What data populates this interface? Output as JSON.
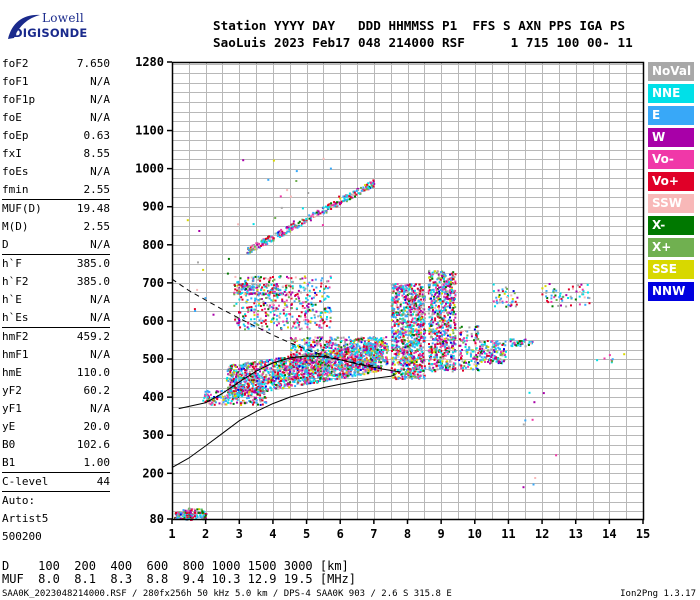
{
  "logo": {
    "top": "Lowell",
    "bottom": "DIGISONDE"
  },
  "header": {
    "line1": "Station YYYY DAY   DDD HHMMSS P1  FFS S AXN PPS IGA PS",
    "line2": "SaoLuis 2023 Feb17 048 214000 RSF      1 715 100 00- 11"
  },
  "params": [
    {
      "name": "foF2",
      "value": "7.650"
    },
    {
      "name": "foF1",
      "value": "N/A"
    },
    {
      "name": "foF1p",
      "value": "N/A"
    },
    {
      "name": "foE",
      "value": "N/A"
    },
    {
      "name": "foEp",
      "value": "0.63"
    },
    {
      "name": "fxI",
      "value": "8.55"
    },
    {
      "name": "foEs",
      "value": "N/A"
    },
    {
      "name": "fmin",
      "value": "2.55"
    },
    {
      "sep": true
    },
    {
      "name": "MUF(D)",
      "value": "19.48"
    },
    {
      "name": "M(D)",
      "value": "2.55"
    },
    {
      "name": "D",
      "value": "N/A"
    },
    {
      "sep": true
    },
    {
      "name": "h`F",
      "value": "385.0"
    },
    {
      "name": "h`F2",
      "value": "385.0"
    },
    {
      "name": "h`E",
      "value": "N/A"
    },
    {
      "name": "h`Es",
      "value": "N/A"
    },
    {
      "sep": true
    },
    {
      "name": "hmF2",
      "value": "459.2"
    },
    {
      "name": "hmF1",
      "value": "N/A"
    },
    {
      "name": "hmE",
      "value": "110.0"
    },
    {
      "name": "yF2",
      "value": "60.2"
    },
    {
      "name": "yF1",
      "value": "N/A"
    },
    {
      "name": "yE",
      "value": "20.0"
    },
    {
      "name": "B0",
      "value": "102.6"
    },
    {
      "name": "B1",
      "value": "1.00"
    },
    {
      "sep": true
    },
    {
      "name": "C-level",
      "value": "44"
    },
    {
      "sep": true
    },
    {
      "text": "Auto:"
    },
    {
      "text": "Artist5"
    },
    {
      "text": "500200"
    }
  ],
  "legend": [
    {
      "label": "NoVal",
      "color": "#a8a8a8"
    },
    {
      "label": "NNE",
      "color": "#00e0e8"
    },
    {
      "label": "E",
      "color": "#38a8f8"
    },
    {
      "label": "W",
      "color": "#a800a8"
    },
    {
      "label": "Vo-",
      "color": "#f038a8"
    },
    {
      "label": "Vo+",
      "color": "#e00028"
    },
    {
      "label": "SSW",
      "color": "#f8b8b8"
    },
    {
      "label": "X-",
      "color": "#007800"
    },
    {
      "label": "X+",
      "color": "#70b050"
    },
    {
      "label": "SSE",
      "color": "#d8d800"
    },
    {
      "label": "NNW",
      "color": "#0000e0"
    }
  ],
  "footer": {
    "distance_line": "D    100  200  400  600  800 1000 1500 3000 [km]",
    "muf_line": "MUF  8.0  8.1  8.3  8.8  9.4 10.3 12.9 19.5 [MHz]",
    "file_line": "SAA0K_2023048214000.RSF / 280fx256h 50 kHz 5.0 km / DPS-4 SAA0K 903 / 2.6 S 315.8 E",
    "version": "Ion2Png 1.3.17"
  },
  "chart_data": {
    "type": "scatter",
    "title": "",
    "xlabel": "",
    "ylabel": "",
    "x_range": [
      1,
      15
    ],
    "y_range": [
      80,
      1280
    ],
    "x_ticks": [
      1,
      2,
      3,
      4,
      5,
      6,
      7,
      8,
      9,
      10,
      11,
      12,
      13,
      14,
      15
    ],
    "y_ticks": [
      80,
      200,
      300,
      400,
      500,
      600,
      700,
      800,
      900,
      1000,
      1100,
      1280
    ],
    "grid": true,
    "legend_placement": "right",
    "clusters": [
      {
        "x": [
          1.05,
          2.0
        ],
        "y": [
          80,
          100
        ],
        "n": 120,
        "shape": "flat"
      },
      {
        "x": [
          1.3,
          2.0
        ],
        "y": [
          95,
          110
        ],
        "n": 40,
        "shape": "flat"
      },
      {
        "x": [
          1.9,
          3.8
        ],
        "y": [
          382,
          420
        ],
        "n": 200,
        "shape": "flat"
      },
      {
        "x": [
          2.6,
          7.2
        ],
        "y": [
          400,
          545
        ],
        "n": 1600,
        "shape": "trend"
      },
      {
        "x": [
          4.5,
          7.4
        ],
        "y": [
          480,
          560
        ],
        "n": 600,
        "shape": "flat"
      },
      {
        "x": [
          7.5,
          8.5
        ],
        "y": [
          450,
          700
        ],
        "n": 900,
        "shape": "flat"
      },
      {
        "x": [
          8.6,
          9.4
        ],
        "y": [
          470,
          735
        ],
        "n": 700,
        "shape": "flat"
      },
      {
        "x": [
          9.5,
          10.1
        ],
        "y": [
          470,
          590
        ],
        "n": 120,
        "shape": "flat"
      },
      {
        "x": [
          10.1,
          10.9
        ],
        "y": [
          490,
          550
        ],
        "n": 140,
        "shape": "flat"
      },
      {
        "x": [
          11.0,
          11.7
        ],
        "y": [
          535,
          555
        ],
        "n": 40,
        "shape": "flat"
      },
      {
        "x": [
          2.8,
          5.7
        ],
        "y": [
          580,
          720
        ],
        "n": 420,
        "shape": "flat"
      },
      {
        "x": [
          2.9,
          4.3
        ],
        "y": [
          670,
          700
        ],
        "n": 140,
        "shape": "flat"
      },
      {
        "x": [
          3.2,
          7.0
        ],
        "y": [
          785,
          965
        ],
        "n": 300,
        "shape": "diag"
      },
      {
        "x": [
          10.5,
          11.3
        ],
        "y": [
          640,
          700
        ],
        "n": 40,
        "shape": "flat"
      },
      {
        "x": [
          11.9,
          13.4
        ],
        "y": [
          640,
          700
        ],
        "n": 60,
        "shape": "flat"
      },
      {
        "x": [
          3.0,
          6.0
        ],
        "y": [
          850,
          1030
        ],
        "n": 20,
        "shape": "flat"
      },
      {
        "x": [
          1.3,
          3.0
        ],
        "y": [
          600,
          880
        ],
        "n": 12,
        "shape": "flat"
      },
      {
        "x": [
          13.4,
          14.6
        ],
        "y": [
          490,
          520
        ],
        "n": 8,
        "shape": "flat"
      },
      {
        "x": [
          11.4,
          12.4
        ],
        "y": [
          140,
          420
        ],
        "n": 10,
        "shape": "flat"
      }
    ],
    "curves": [
      {
        "name": "",
        "style": "solid",
        "points": [
          [
            1,
            215
          ],
          [
            1.5,
            240
          ],
          [
            2,
            272
          ],
          [
            2.5,
            305
          ],
          [
            3,
            338
          ],
          [
            3.5,
            362
          ],
          [
            4,
            383
          ],
          [
            4.5,
            400
          ],
          [
            5,
            413
          ],
          [
            5.5,
            425
          ],
          [
            6,
            434
          ],
          [
            6.5,
            442
          ],
          [
            7,
            449
          ],
          [
            7.5,
            455
          ],
          [
            7.65,
            459
          ]
        ]
      },
      {
        "name": "",
        "style": "solid",
        "points": [
          [
            1.2,
            370
          ],
          [
            2,
            385
          ],
          [
            2.5,
            410
          ],
          [
            3,
            440
          ],
          [
            3.5,
            468
          ],
          [
            4,
            490
          ],
          [
            4.5,
            503
          ],
          [
            5,
            508
          ],
          [
            5.5,
            506
          ],
          [
            6,
            498
          ],
          [
            6.5,
            487
          ],
          [
            7,
            478
          ],
          [
            7.5,
            470
          ],
          [
            7.8,
            466
          ]
        ]
      },
      {
        "name": "",
        "style": "dashed",
        "points": [
          [
            1,
            710
          ],
          [
            1.5,
            680
          ],
          [
            2,
            655
          ],
          [
            2.5,
            630
          ],
          [
            3,
            607
          ],
          [
            3.5,
            585
          ],
          [
            4,
            563
          ],
          [
            4.5,
            543
          ],
          [
            5,
            525
          ],
          [
            5.5,
            510
          ],
          [
            6,
            498
          ],
          [
            6.5,
            489
          ],
          [
            7,
            482
          ]
        ]
      }
    ]
  }
}
